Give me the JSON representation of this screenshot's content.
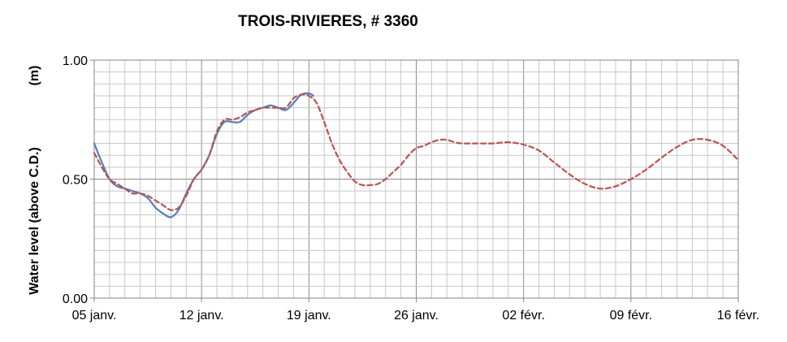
{
  "chart_data": {
    "type": "line",
    "title": "TROIS-RIVIERES, # 3360",
    "ylabel": "Water level (above C.D.)",
    "yunit": "(m)",
    "ylim": [
      0,
      1
    ],
    "yticks": [
      "0.00",
      "0.50",
      "1.00"
    ],
    "x_start_day": 0,
    "x_end_day": 42,
    "xticks": [
      {
        "day": 0,
        "label": "05 janv."
      },
      {
        "day": 7,
        "label": "12 janv."
      },
      {
        "day": 14,
        "label": "19 janv."
      },
      {
        "day": 21,
        "label": "26 janv."
      },
      {
        "day": 28,
        "label": "02 févr."
      },
      {
        "day": 35,
        "label": "09 févr."
      },
      {
        "day": 42,
        "label": "16 févr."
      }
    ],
    "grid": true,
    "series": [
      {
        "style": "solid",
        "color": "#4f81bd",
        "points": [
          [
            0,
            0.65
          ],
          [
            0.5,
            0.57
          ],
          [
            1,
            0.5
          ],
          [
            1.5,
            0.47
          ],
          [
            2,
            0.46
          ],
          [
            2.5,
            0.45
          ],
          [
            3,
            0.44
          ],
          [
            3.5,
            0.42
          ],
          [
            4,
            0.38
          ],
          [
            4.5,
            0.355
          ],
          [
            5,
            0.34
          ],
          [
            5.5,
            0.37
          ],
          [
            6,
            0.44
          ],
          [
            6.5,
            0.5
          ],
          [
            7,
            0.54
          ],
          [
            7.5,
            0.6
          ],
          [
            8,
            0.69
          ],
          [
            8.5,
            0.74
          ],
          [
            9,
            0.74
          ],
          [
            9.5,
            0.74
          ],
          [
            10,
            0.77
          ],
          [
            10.5,
            0.79
          ],
          [
            11,
            0.8
          ],
          [
            11.5,
            0.81
          ],
          [
            12,
            0.8
          ],
          [
            12.5,
            0.79
          ],
          [
            13,
            0.82
          ],
          [
            13.5,
            0.855
          ],
          [
            14,
            0.86
          ],
          [
            14.3,
            0.85
          ]
        ]
      },
      {
        "style": "dashed",
        "color": "#c0504d",
        "points": [
          [
            0,
            0.61
          ],
          [
            0.5,
            0.55
          ],
          [
            1,
            0.5
          ],
          [
            1.5,
            0.48
          ],
          [
            2,
            0.46
          ],
          [
            2.5,
            0.44
          ],
          [
            3,
            0.44
          ],
          [
            3.5,
            0.43
          ],
          [
            4,
            0.41
          ],
          [
            4.5,
            0.39
          ],
          [
            5,
            0.37
          ],
          [
            5.5,
            0.38
          ],
          [
            6,
            0.43
          ],
          [
            6.5,
            0.5
          ],
          [
            7,
            0.54
          ],
          [
            7.5,
            0.6
          ],
          [
            8,
            0.7
          ],
          [
            8.5,
            0.75
          ],
          [
            9,
            0.75
          ],
          [
            9.5,
            0.76
          ],
          [
            10,
            0.78
          ],
          [
            10.5,
            0.79
          ],
          [
            11,
            0.8
          ],
          [
            11.5,
            0.8
          ],
          [
            12,
            0.8
          ],
          [
            12.5,
            0.8
          ],
          [
            13,
            0.84
          ],
          [
            13.5,
            0.855
          ],
          [
            14,
            0.85
          ],
          [
            14.5,
            0.82
          ],
          [
            15,
            0.74
          ],
          [
            15.5,
            0.65
          ],
          [
            16,
            0.58
          ],
          [
            16.5,
            0.53
          ],
          [
            17,
            0.49
          ],
          [
            17.5,
            0.475
          ],
          [
            18,
            0.475
          ],
          [
            18.5,
            0.48
          ],
          [
            19,
            0.5
          ],
          [
            19.5,
            0.53
          ],
          [
            20,
            0.56
          ],
          [
            20.5,
            0.6
          ],
          [
            21,
            0.63
          ],
          [
            21.5,
            0.64
          ],
          [
            22,
            0.655
          ],
          [
            22.5,
            0.665
          ],
          [
            23,
            0.665
          ],
          [
            23.5,
            0.655
          ],
          [
            24,
            0.65
          ],
          [
            25,
            0.65
          ],
          [
            26,
            0.65
          ],
          [
            27,
            0.655
          ],
          [
            28,
            0.645
          ],
          [
            29,
            0.62
          ],
          [
            30,
            0.57
          ],
          [
            31,
            0.52
          ],
          [
            32,
            0.48
          ],
          [
            33,
            0.46
          ],
          [
            34,
            0.47
          ],
          [
            35,
            0.5
          ],
          [
            36,
            0.54
          ],
          [
            37,
            0.59
          ],
          [
            38,
            0.635
          ],
          [
            39,
            0.665
          ],
          [
            40,
            0.665
          ],
          [
            41,
            0.64
          ],
          [
            42,
            0.58
          ]
        ]
      }
    ]
  }
}
